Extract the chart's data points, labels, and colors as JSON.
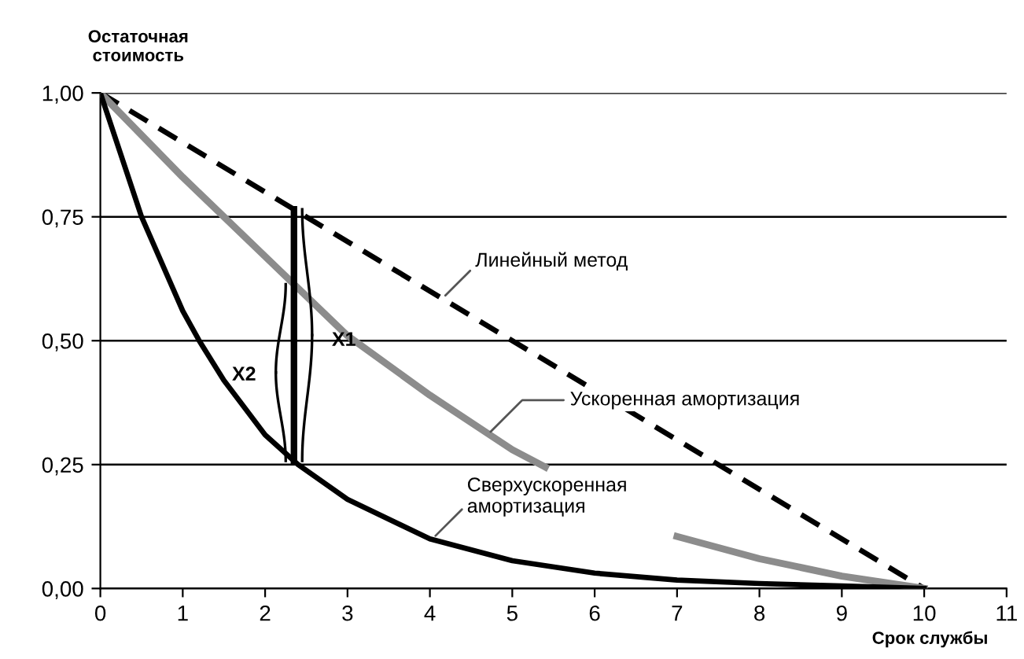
{
  "chart_data": {
    "type": "line",
    "xlabel": "Срок службы",
    "ylabel": "Остаточная\nстоимость",
    "xlim": [
      0,
      11
    ],
    "xticks": [
      0,
      1,
      2,
      3,
      4,
      5,
      6,
      7,
      8,
      9,
      10,
      11
    ],
    "ylim": [
      0,
      1
    ],
    "yticks": [
      {
        "value": 0,
        "label": "0,00"
      },
      {
        "value": 0.25,
        "label": "0,25"
      },
      {
        "value": 0.5,
        "label": "0,50"
      },
      {
        "value": 0.75,
        "label": "0,75"
      },
      {
        "value": 1,
        "label": "1,00"
      }
    ],
    "grid": "y",
    "legend": false,
    "marker": "none",
    "series": [
      {
        "name": "Линейный метод",
        "color": "#000000",
        "line_style": "dashed",
        "x": [
          0,
          10
        ],
        "values": [
          1,
          0
        ]
      },
      {
        "name": "Ускоренная амортизация",
        "color": "#8c8c8c",
        "line_style": "solid",
        "x": [
          0,
          1,
          2,
          3,
          4,
          5,
          5.4,
          6.7,
          7,
          8,
          9,
          10
        ],
        "values": [
          1,
          0.83,
          0.67,
          0.51,
          0.39,
          0.28,
          0.245,
          null,
          0.105,
          0.06,
          0.025,
          0
        ]
      },
      {
        "name": "Сверхускоренная\nамортизация",
        "color": "#000000",
        "line_style": "solid",
        "x": [
          0,
          0.5,
          1,
          1.2,
          1.5,
          2,
          2.4,
          3,
          4,
          5,
          6,
          7,
          8,
          9,
          10
        ],
        "values": [
          1,
          0.75,
          0.56,
          0.5,
          0.42,
          0.31,
          0.25,
          0.18,
          0.1,
          0.056,
          0.031,
          0.017,
          0.01,
          0.005,
          0
        ]
      }
    ],
    "annotations": [
      "X1",
      "X2"
    ]
  }
}
